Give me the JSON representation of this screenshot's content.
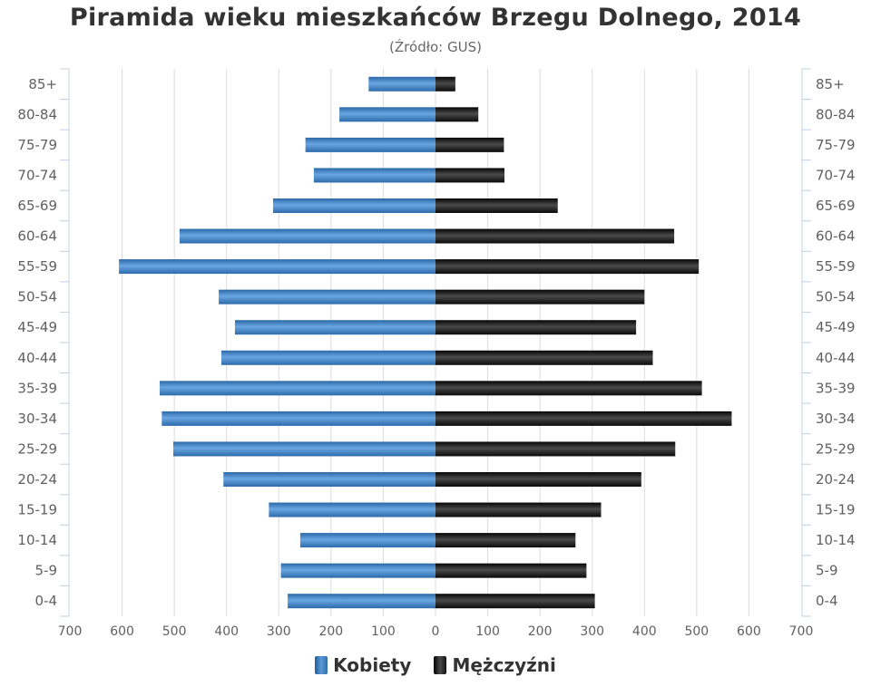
{
  "chart_data": {
    "type": "bar",
    "orientation": "horizontal",
    "title": "Piramida wieku mieszkańców Brzegu Dolnego, 2014",
    "subtitle": "(Źródło: GUS)",
    "categories": [
      "0-4",
      "5-9",
      "10-14",
      "15-19",
      "20-24",
      "25-29",
      "30-34",
      "35-39",
      "40-44",
      "45-49",
      "50-54",
      "55-59",
      "60-64",
      "65-69",
      "70-74",
      "75-79",
      "80-84",
      "85+"
    ],
    "series": [
      {
        "name": "Kobiety",
        "color": "#3d7dbd",
        "values": [
          283,
          296,
          259,
          319,
          406,
          502,
          524,
          528,
          410,
          384,
          415,
          606,
          490,
          311,
          233,
          249,
          184,
          128
        ]
      },
      {
        "name": "Mężczyźni",
        "color": "#1a1a1a",
        "values": [
          305,
          289,
          268,
          317,
          394,
          459,
          567,
          510,
          416,
          384,
          400,
          504,
          457,
          234,
          132,
          131,
          82,
          38
        ]
      }
    ],
    "x_tick_labels": [
      "700",
      "600",
      "500",
      "400",
      "300",
      "200",
      "100",
      "0",
      "100",
      "200",
      "300",
      "400",
      "500",
      "600",
      "700"
    ],
    "xlim": [
      -700,
      700
    ],
    "grid": true,
    "legend_position": "bottom-center"
  }
}
